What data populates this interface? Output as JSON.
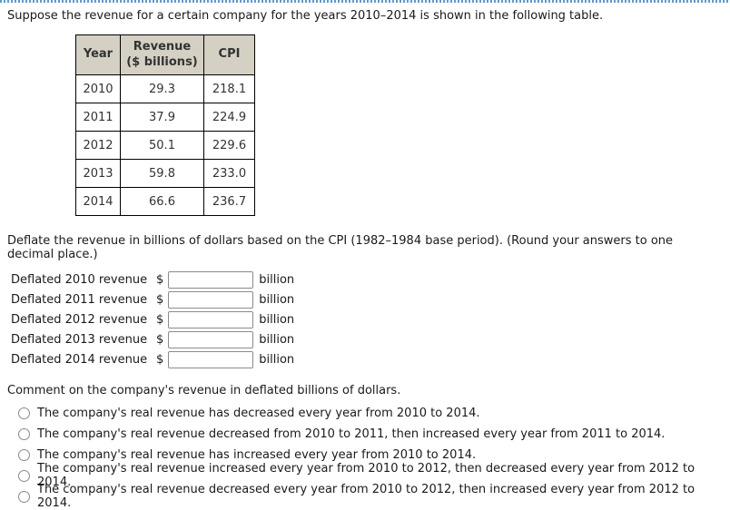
{
  "page": {
    "intro": "Suppose the revenue for a certain company for the years 2010–2014 is shown in the following table."
  },
  "table": {
    "headers": {
      "year": "Year",
      "revenue": "Revenue\n($ billions)",
      "cpi": "CPI"
    },
    "rows": [
      {
        "year": "2010",
        "revenue": "29.3",
        "cpi": "218.1"
      },
      {
        "year": "2011",
        "revenue": "37.9",
        "cpi": "224.9"
      },
      {
        "year": "2012",
        "revenue": "50.1",
        "cpi": "229.6"
      },
      {
        "year": "2013",
        "revenue": "59.8",
        "cpi": "233.0"
      },
      {
        "year": "2014",
        "revenue": "66.6",
        "cpi": "236.7"
      }
    ]
  },
  "deflate": {
    "instruction": "Deflate the revenue in billions of dollars based on the CPI (1982–1984 base period). (Round your answers to one decimal place.)",
    "currency": "$",
    "unit": "billion",
    "rows": [
      {
        "label": "Deflated 2010 revenue",
        "value": ""
      },
      {
        "label": "Deflated 2011 revenue",
        "value": ""
      },
      {
        "label": "Deflated 2012 revenue",
        "value": ""
      },
      {
        "label": "Deflated 2013 revenue",
        "value": ""
      },
      {
        "label": "Deflated 2014 revenue",
        "value": ""
      }
    ]
  },
  "comment": {
    "prompt": "Comment on the company's revenue in deflated billions of dollars.",
    "options": [
      "The company's real revenue has decreased every year from 2010 to 2014.",
      "The company's real revenue decreased from 2010 to 2011, then increased every year from 2011 to 2014.",
      "The company's real revenue has increased every year from 2010 to 2014.",
      "The company's real revenue increased every year from 2010 to 2012, then decreased every year from 2012 to 2014.",
      "The company's real revenue decreased every year from 2010 to 2012, then increased every year from 2012 to 2014."
    ],
    "selected": null
  },
  "colors": {
    "revenue_text": "#ff0000",
    "table_header_bg": "#d4d0c4",
    "top_border": "#5c9bd3"
  }
}
